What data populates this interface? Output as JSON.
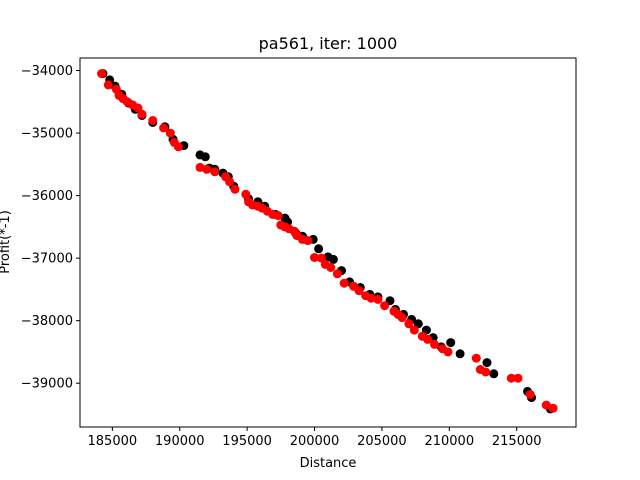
{
  "chart_data": {
    "type": "scatter",
    "title": "pa561, iter: 1000",
    "xlabel": "Distance",
    "ylabel": "Profit(*-1)",
    "xlim": [
      182600,
      219400
    ],
    "ylim": [
      -39700,
      -33800
    ],
    "xticks": [
      185000,
      190000,
      195000,
      200000,
      205000,
      210000,
      215000
    ],
    "xtick_labels": [
      "185000",
      "190000",
      "195000",
      "200000",
      "205000",
      "210000",
      "215000"
    ],
    "yticks": [
      -34000,
      -35000,
      -36000,
      -37000,
      -38000,
      -39000
    ],
    "ytick_labels": [
      "−34000",
      "−35000",
      "−36000",
      "−37000",
      "−38000",
      "−39000"
    ],
    "grid": false,
    "legend": "none",
    "series": [
      {
        "color": "#000000",
        "points": [
          [
            184300,
            -34050
          ],
          [
            184800,
            -34150
          ],
          [
            185200,
            -34250
          ],
          [
            185700,
            -34380
          ],
          [
            186200,
            -34520
          ],
          [
            186700,
            -34620
          ],
          [
            187200,
            -34720
          ],
          [
            188000,
            -34830
          ],
          [
            188900,
            -34900
          ],
          [
            189500,
            -35100
          ],
          [
            190300,
            -35200
          ],
          [
            191500,
            -35350
          ],
          [
            191900,
            -35380
          ],
          [
            192200,
            -35560
          ],
          [
            192600,
            -35580
          ],
          [
            193200,
            -35640
          ],
          [
            193600,
            -35700
          ],
          [
            194000,
            -35850
          ],
          [
            195100,
            -36050
          ],
          [
            195800,
            -36100
          ],
          [
            196300,
            -36170
          ],
          [
            197100,
            -36300
          ],
          [
            197800,
            -36360
          ],
          [
            198000,
            -36420
          ],
          [
            198600,
            -36600
          ],
          [
            199100,
            -36650
          ],
          [
            199900,
            -36700
          ],
          [
            200300,
            -36850
          ],
          [
            201000,
            -36980
          ],
          [
            201400,
            -37020
          ],
          [
            202000,
            -37200
          ],
          [
            202600,
            -37380
          ],
          [
            203400,
            -37470
          ],
          [
            204100,
            -37580
          ],
          [
            204700,
            -37620
          ],
          [
            205600,
            -37680
          ],
          [
            206000,
            -37820
          ],
          [
            206600,
            -37900
          ],
          [
            207200,
            -37980
          ],
          [
            207700,
            -38050
          ],
          [
            208300,
            -38150
          ],
          [
            208800,
            -38270
          ],
          [
            209400,
            -38420
          ],
          [
            210100,
            -38350
          ],
          [
            210800,
            -38530
          ],
          [
            212800,
            -38670
          ],
          [
            213300,
            -38850
          ],
          [
            215800,
            -39130
          ],
          [
            216100,
            -39230
          ],
          [
            217500,
            -39410
          ]
        ]
      },
      {
        "color": "#ff0000",
        "points": [
          [
            184200,
            -34050
          ],
          [
            184700,
            -34230
          ],
          [
            185300,
            -34300
          ],
          [
            185500,
            -34400
          ],
          [
            185800,
            -34450
          ],
          [
            186100,
            -34500
          ],
          [
            186500,
            -34550
          ],
          [
            186900,
            -34600
          ],
          [
            187200,
            -34700
          ],
          [
            188000,
            -34800
          ],
          [
            188800,
            -34920
          ],
          [
            189300,
            -35000
          ],
          [
            189600,
            -35150
          ],
          [
            189900,
            -35220
          ],
          [
            191500,
            -35550
          ],
          [
            192000,
            -35580
          ],
          [
            192600,
            -35620
          ],
          [
            193400,
            -35700
          ],
          [
            193700,
            -35780
          ],
          [
            194100,
            -35900
          ],
          [
            194900,
            -35980
          ],
          [
            195100,
            -36100
          ],
          [
            195400,
            -36150
          ],
          [
            195800,
            -36170
          ],
          [
            196100,
            -36200
          ],
          [
            196500,
            -36250
          ],
          [
            196900,
            -36300
          ],
          [
            197300,
            -36320
          ],
          [
            197500,
            -36470
          ],
          [
            197800,
            -36500
          ],
          [
            198100,
            -36530
          ],
          [
            198500,
            -36570
          ],
          [
            198700,
            -36640
          ],
          [
            199100,
            -36700
          ],
          [
            199500,
            -36720
          ],
          [
            200000,
            -36990
          ],
          [
            200500,
            -37000
          ],
          [
            200800,
            -37100
          ],
          [
            201200,
            -37150
          ],
          [
            201700,
            -37250
          ],
          [
            202200,
            -37400
          ],
          [
            202900,
            -37450
          ],
          [
            203300,
            -37520
          ],
          [
            203800,
            -37600
          ],
          [
            204200,
            -37640
          ],
          [
            204700,
            -37660
          ],
          [
            205200,
            -37760
          ],
          [
            205900,
            -37850
          ],
          [
            206200,
            -37900
          ],
          [
            206500,
            -37950
          ],
          [
            207000,
            -38050
          ],
          [
            207400,
            -38150
          ],
          [
            208000,
            -38250
          ],
          [
            208400,
            -38300
          ],
          [
            208900,
            -38380
          ],
          [
            209500,
            -38450
          ],
          [
            209900,
            -38500
          ],
          [
            212000,
            -38600
          ],
          [
            212300,
            -38780
          ],
          [
            212700,
            -38820
          ],
          [
            214600,
            -38920
          ],
          [
            215100,
            -38920
          ],
          [
            216000,
            -39180
          ],
          [
            217200,
            -39350
          ],
          [
            217700,
            -39400
          ]
        ]
      }
    ]
  }
}
